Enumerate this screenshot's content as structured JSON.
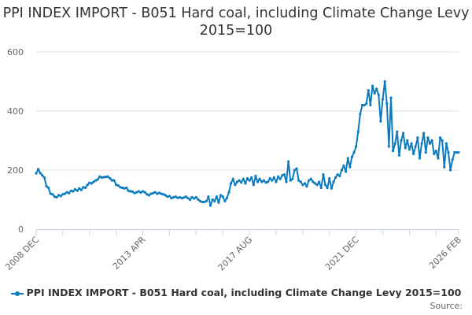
{
  "chart_data": {
    "type": "line",
    "title": "PPI INDEX IMPORT - B051 Hard coal, including Climate Change Levy 2015=100",
    "xlabel": "",
    "ylabel": "",
    "ylim": [
      0,
      600
    ],
    "yticks": [
      "0",
      "200",
      "400",
      "600"
    ],
    "xtick_labels": [
      "2008 DEC",
      "2013 APR",
      "2017 AUG",
      "2021 DEC",
      "2026 FEB"
    ],
    "grid": true,
    "legend_position": "bottom",
    "series_color": "#0b7bc0",
    "x": [
      "2008-12",
      "2009-01",
      "2009-02",
      "2009-03",
      "2009-04",
      "2009-05",
      "2009-06",
      "2009-07",
      "2009-08",
      "2009-09",
      "2009-10",
      "2009-11",
      "2009-12",
      "2010-01",
      "2010-02",
      "2010-03",
      "2010-04",
      "2010-05",
      "2010-06",
      "2010-07",
      "2010-08",
      "2010-09",
      "2010-10",
      "2010-11",
      "2010-12",
      "2011-01",
      "2011-02",
      "2011-03",
      "2011-04",
      "2011-05",
      "2011-06",
      "2011-07",
      "2011-08",
      "2011-09",
      "2011-10",
      "2011-11",
      "2011-12",
      "2012-01",
      "2012-02",
      "2012-03",
      "2012-04",
      "2012-05",
      "2012-06",
      "2012-07",
      "2012-08",
      "2012-09",
      "2012-10",
      "2012-11",
      "2012-12",
      "2013-01",
      "2013-02",
      "2013-03",
      "2013-04",
      "2013-05",
      "2013-06",
      "2013-07",
      "2013-08",
      "2013-09",
      "2013-10",
      "2013-11",
      "2013-12",
      "2014-01",
      "2014-02",
      "2014-03",
      "2014-04",
      "2014-05",
      "2014-06",
      "2014-07",
      "2014-08",
      "2014-09",
      "2014-10",
      "2014-11",
      "2014-12",
      "2015-01",
      "2015-02",
      "2015-03",
      "2015-04",
      "2015-05",
      "2015-06",
      "2015-07",
      "2015-08",
      "2015-09",
      "2015-10",
      "2015-11",
      "2015-12",
      "2016-01",
      "2016-02",
      "2016-03",
      "2016-04",
      "2016-05",
      "2016-06",
      "2016-07",
      "2016-08",
      "2016-09",
      "2016-10",
      "2016-11",
      "2016-12",
      "2017-01",
      "2017-02",
      "2017-03",
      "2017-04",
      "2017-05",
      "2017-06",
      "2017-07",
      "2017-08",
      "2017-09",
      "2017-10",
      "2017-11",
      "2017-12",
      "2018-01",
      "2018-02",
      "2018-03",
      "2018-04",
      "2018-05",
      "2018-06",
      "2018-07",
      "2018-08",
      "2018-09",
      "2018-10",
      "2018-11",
      "2018-12",
      "2019-01",
      "2019-02",
      "2019-03",
      "2019-04",
      "2019-05",
      "2019-06",
      "2019-07",
      "2019-08",
      "2019-09",
      "2019-10",
      "2019-11",
      "2019-12",
      "2020-01",
      "2020-02",
      "2020-03",
      "2020-04",
      "2020-05",
      "2020-06",
      "2020-07",
      "2020-08",
      "2020-09",
      "2020-10",
      "2020-11",
      "2020-12",
      "2021-01",
      "2021-02",
      "2021-03",
      "2021-04",
      "2021-05",
      "2021-06",
      "2021-07",
      "2021-08",
      "2021-09",
      "2021-10",
      "2021-11",
      "2021-12",
      "2022-01",
      "2022-02",
      "2022-03",
      "2022-04",
      "2022-05",
      "2022-06",
      "2022-07",
      "2022-08",
      "2022-09",
      "2022-10",
      "2022-11",
      "2022-12",
      "2023-01",
      "2023-02",
      "2023-03",
      "2023-04",
      "2023-05",
      "2023-06",
      "2023-07",
      "2023-08",
      "2023-09",
      "2023-10",
      "2023-11",
      "2023-12",
      "2024-01",
      "2024-02",
      "2024-03",
      "2024-04",
      "2024-05",
      "2024-06",
      "2024-07",
      "2024-08",
      "2024-09",
      "2024-10",
      "2024-11",
      "2024-12",
      "2025-01",
      "2025-02",
      "2025-03",
      "2025-04",
      "2025-05",
      "2025-06",
      "2025-07",
      "2025-08",
      "2025-09",
      "2025-10",
      "2025-11",
      "2025-12",
      "2026-01",
      "2026-02"
    ],
    "series": [
      {
        "name": "PPI INDEX IMPORT - B051 Hard coal, including Climate Change Levy 2015=100",
        "values": [
          189,
          203,
          190,
          182,
          175,
          145,
          140,
          120,
          118,
          110,
          108,
          115,
          112,
          118,
          120,
          125,
          122,
          130,
          128,
          135,
          130,
          138,
          133,
          142,
          140,
          150,
          157,
          155,
          160,
          165,
          168,
          178,
          175,
          176,
          177,
          178,
          172,
          165,
          165,
          150,
          148,
          142,
          140,
          138,
          140,
          130,
          128,
          127,
          122,
          125,
          128,
          124,
          128,
          125,
          118,
          115,
          120,
          122,
          125,
          120,
          123,
          120,
          118,
          115,
          110,
          112,
          105,
          108,
          110,
          106,
          108,
          105,
          107,
          110,
          105,
          100,
          108,
          104,
          108,
          100,
          95,
          92,
          92,
          95,
          110,
          80,
          100,
          95,
          110,
          90,
          115,
          110,
          95,
          105,
          125,
          155,
          170,
          150,
          160,
          165,
          158,
          170,
          155,
          172,
          165,
          175,
          150,
          180,
          160,
          170,
          160,
          165,
          158,
          160,
          172,
          165,
          175,
          160,
          178,
          170,
          182,
          185,
          160,
          229,
          165,
          170,
          200,
          205,
          165,
          160,
          150,
          155,
          145,
          165,
          170,
          160,
          155,
          150,
          160,
          140,
          185,
          150,
          140,
          172,
          138,
          160,
          175,
          185,
          180,
          200,
          215,
          195,
          240,
          210,
          245,
          260,
          280,
          330,
          390,
          420,
          420,
          425,
          470,
          420,
          485,
          460,
          475,
          455,
          365,
          440,
          500,
          425,
          280,
          445,
          265,
          290,
          330,
          250,
          300,
          325,
          275,
          300,
          270,
          290,
          255,
          280,
          310,
          240,
          290,
          325,
          260,
          310,
          290,
          300,
          255,
          265,
          240,
          310,
          300,
          210,
          290,
          260,
          200,
          235,
          260,
          260,
          260
        ]
      }
    ]
  },
  "legend": {
    "label": "PPI INDEX IMPORT - B051 Hard coal, including Climate Change Levy 2015=100"
  },
  "source_label": "Source:"
}
